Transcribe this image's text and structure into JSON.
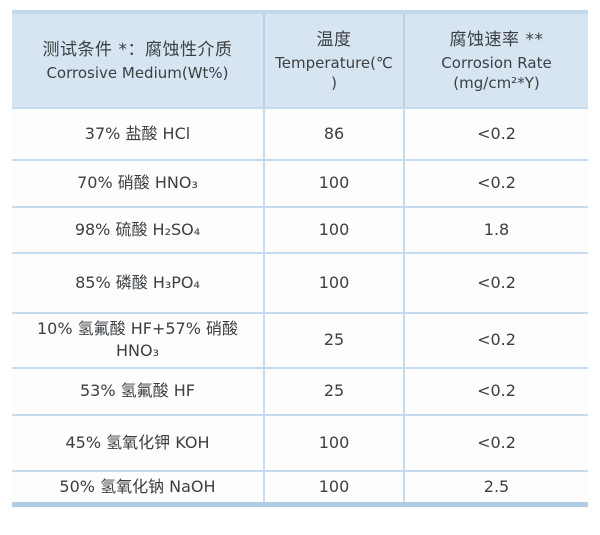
{
  "table": {
    "headers": {
      "medium": {
        "zh": "测试条件 *：腐蚀性介质",
        "en": "Corrosive Medium(Wt%)"
      },
      "temperature": {
        "zh": "温度",
        "en": "Temperature(℃ )"
      },
      "rate": {
        "zh": "腐蚀速率 **",
        "en": "Corrosion Rate",
        "unit": "(mg/cm²*Y)"
      }
    },
    "rows": [
      {
        "medium": "37% 盐酸 HCl",
        "temperature": "86",
        "rate": "<0.2"
      },
      {
        "medium": "70% 硝酸 HNO₃",
        "temperature": "100",
        "rate": "<0.2"
      },
      {
        "medium": "98% 硫酸 H₂SO₄",
        "temperature": "100",
        "rate": "1.8"
      },
      {
        "medium": "85% 磷酸 H₃PO₄",
        "temperature": "100",
        "rate": "<0.2"
      },
      {
        "medium": "10% 氢氟酸 HF+57% 硝酸\nHNO₃",
        "temperature": "25",
        "rate": "<0.2"
      },
      {
        "medium": "53% 氢氟酸 HF",
        "temperature": "25",
        "rate": "<0.2"
      },
      {
        "medium": "45% 氢氧化钾 KOH",
        "temperature": "100",
        "rate": "<0.2"
      },
      {
        "medium": "50% 氢氧化钠 NaOH",
        "temperature": "100",
        "rate": "2.5"
      }
    ]
  },
  "colors": {
    "header_background": "#d7e4f2",
    "top_border": "#c1d8ec",
    "bottom_border": "#b2cbe5",
    "row_separator": "#c6dbee",
    "column_divider": "#c6dbee",
    "column_divider_header": "#b9d0e8",
    "body_background": "#fdfdfe",
    "text": "#3c4043"
  }
}
